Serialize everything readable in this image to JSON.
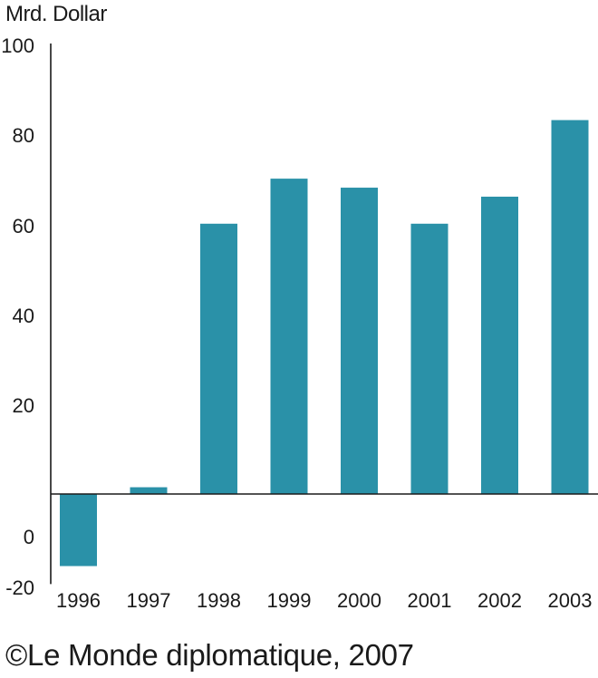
{
  "chart_data": {
    "type": "bar",
    "categories": [
      "1996",
      "1997",
      "1998",
      "1999",
      "2000",
      "2001",
      "2002",
      "2003"
    ],
    "values": [
      -16,
      1.5,
      60,
      70,
      68,
      60,
      66,
      83
    ],
    "ylabel": "Mrd. Dollar",
    "ylim": [
      -20,
      100
    ],
    "y_ticks": [
      100,
      80,
      60,
      40,
      20,
      0,
      -20
    ],
    "grid": false,
    "bar_color": "#2a91a8"
  },
  "credit": "©Le Monde diplomatique, 2007"
}
